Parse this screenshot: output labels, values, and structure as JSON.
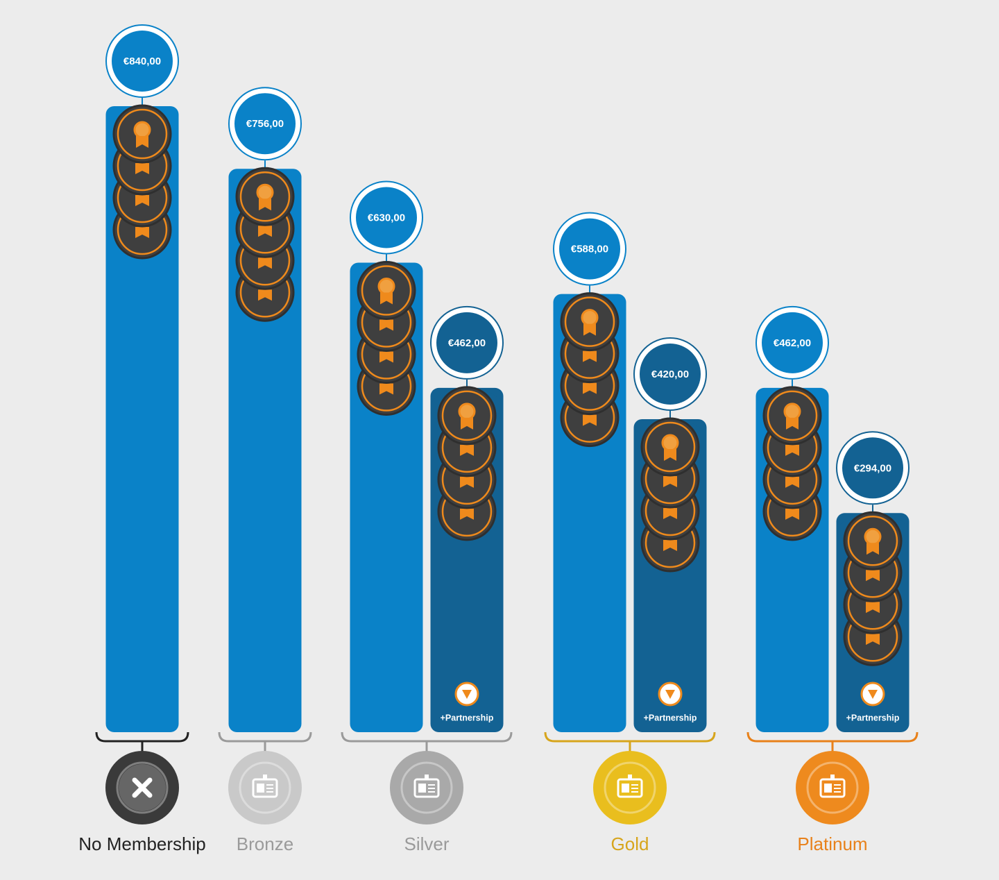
{
  "chart_data": {
    "type": "bar",
    "categories": [
      "No Membership",
      "Bronze",
      "Silver",
      "Gold",
      "Platinum"
    ],
    "category_colors": [
      "#222222",
      "#9a9a9a",
      "#9a9a9a",
      "#d7a51c",
      "#e8811a"
    ],
    "medal_colors": [
      "#3a3a3a",
      "#c9c9c9",
      "#a9a9a9",
      "#e9be1e",
      "#ee8a1e"
    ],
    "series": [
      {
        "color": "#0a82c8",
        "values": [
          840,
          756,
          630,
          588,
          462
        ],
        "value_labels": [
          "€840,00",
          "€756,00",
          "€630,00",
          "€588,00",
          "€462,00"
        ]
      },
      {
        "name": "+Partnership",
        "color": "#136293",
        "values": [
          null,
          null,
          462,
          420,
          294
        ],
        "value_labels": [
          null,
          null,
          "€462,00",
          "€420,00",
          "€294,00"
        ]
      }
    ],
    "ylim": [
      0,
      840
    ]
  }
}
